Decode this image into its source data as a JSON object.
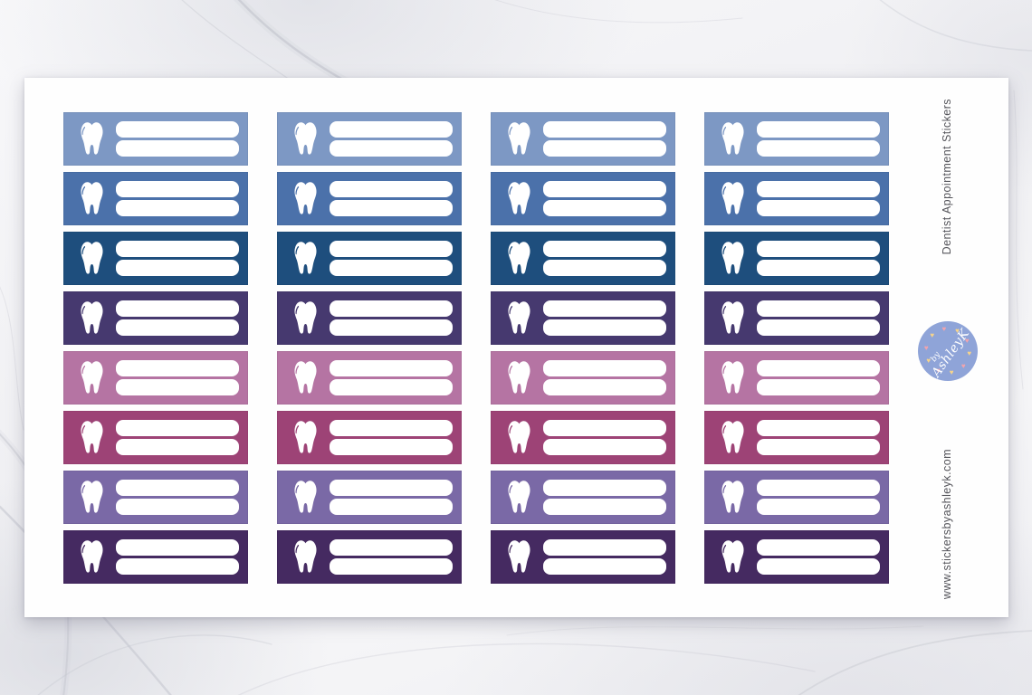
{
  "product": {
    "title": "Dentist Appointment Stickers",
    "website": "www.stickersbyashleyk.com"
  },
  "logo": {
    "text_top": "by",
    "text_main": "AshleyK",
    "circle_color": "#8fa4d8",
    "heart_colors": [
      "#f6d48c",
      "#f2a4ad"
    ]
  },
  "sticker_sheet": {
    "columns": 4,
    "rows": 8,
    "icon": "tooth-icon",
    "writing_lines_per_sticker": 2,
    "line_color": "#ffffff",
    "row_colors": [
      "#7d98c4",
      "#4b71aa",
      "#1e4e7d",
      "#46396f",
      "#b574a3",
      "#9d4376",
      "#7a69a6",
      "#452a61"
    ],
    "background": {
      "sheet_color": "#fefefe",
      "surface": "white-marble",
      "vein_color": "#c3c5ce"
    }
  }
}
